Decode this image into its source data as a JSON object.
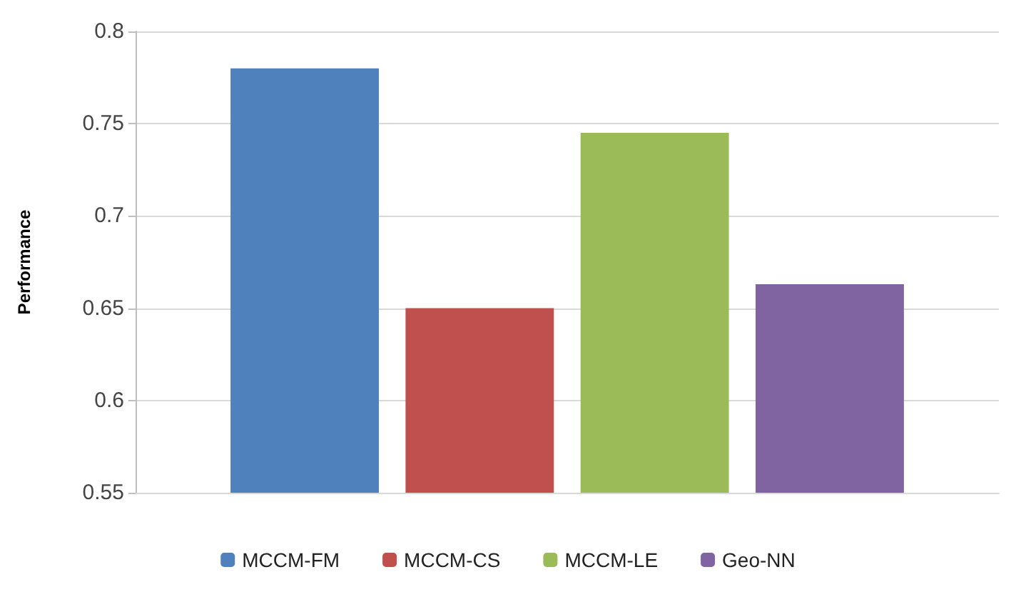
{
  "chart_data": {
    "type": "bar",
    "ylabel": "Performance",
    "categories": [
      null
    ],
    "series": [
      {
        "name": "MCCM-FM",
        "color": "#4f81bd",
        "values": [
          0.78
        ]
      },
      {
        "name": "MCCM-CS",
        "color": "#c0504d",
        "values": [
          0.65
        ]
      },
      {
        "name": "MCCM-LE",
        "color": "#9bbb59",
        "values": [
          0.745
        ]
      },
      {
        "name": "Geo-NN",
        "color": "#8064a2",
        "values": [
          0.663
        ]
      }
    ],
    "ylim": [
      0.55,
      0.8
    ],
    "yticks": [
      0.55,
      0.6,
      0.65,
      0.7,
      0.75,
      0.8
    ],
    "grid": "y",
    "legend": "bottom"
  }
}
